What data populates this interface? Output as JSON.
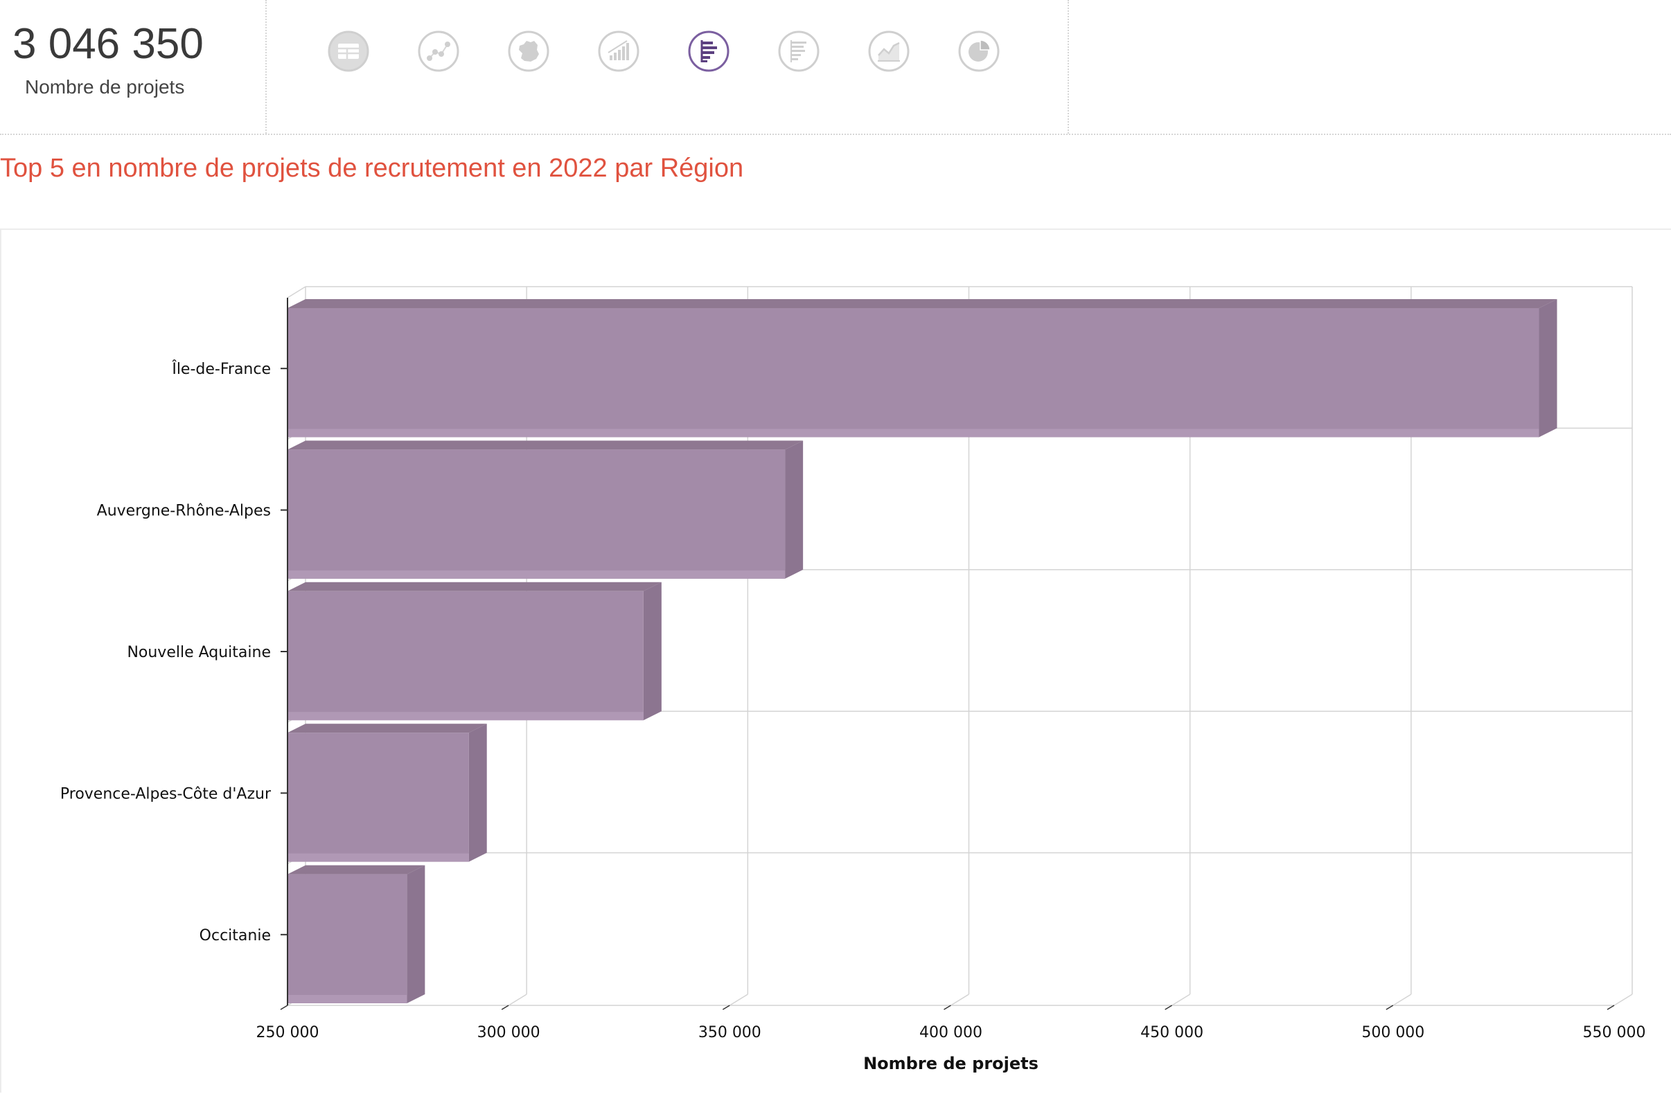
{
  "kpi": {
    "value": "3 046 350",
    "label": "Nombre de projets"
  },
  "toolbar": {
    "icons": [
      {
        "name": "table-icon",
        "active": false
      },
      {
        "name": "scatter-icon",
        "active": false
      },
      {
        "name": "france-map-icon",
        "active": false
      },
      {
        "name": "bar-chart-icon",
        "active": false
      },
      {
        "name": "horizontal-bar-chart-icon",
        "active": true
      },
      {
        "name": "list-chart-icon",
        "active": false
      },
      {
        "name": "line-chart-icon",
        "active": false
      },
      {
        "name": "pie-chart-icon",
        "active": false
      }
    ],
    "active_color": "#7b5fa0",
    "inactive_color": "#cfcfcf"
  },
  "title": "Top 5 en nombre de projets de recrutement en 2022 par Région",
  "colors": {
    "title": "#e0523f",
    "bar_front": "#a38ba8",
    "bar_top": "#8f7891",
    "bar_side": "#8c7590",
    "grid": "#d4d4d4"
  },
  "chart_data": {
    "type": "bar",
    "orientation": "horizontal",
    "categories": [
      "Île-de-France",
      "Auvergne-Rhône-Alpes",
      "Nouvelle Aquitaine",
      "Provence-Alpes-Côte d'Azur",
      "Occitanie"
    ],
    "values": [
      533000,
      362500,
      330500,
      291000,
      277000
    ],
    "xlabel": "Nombre de projets",
    "xlim": [
      250000,
      550000
    ],
    "xticks": [
      250000,
      300000,
      350000,
      400000,
      450000,
      500000,
      550000
    ],
    "xtick_labels": [
      "250 000",
      "300 000",
      "350 000",
      "400 000",
      "450 000",
      "500 000",
      "550 000"
    ],
    "grid": true,
    "style_3d": true
  }
}
